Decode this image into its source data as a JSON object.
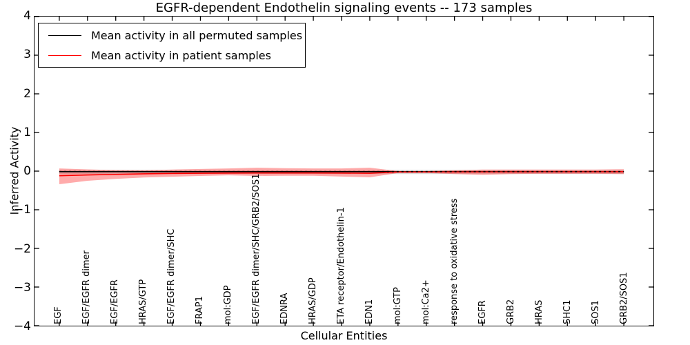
{
  "chart_data": {
    "type": "line",
    "title": "EGFR-dependent Endothelin signaling events -- 173 samples",
    "xlabel": "Cellular Entities",
    "ylabel": "Inferred Activity",
    "ylim": [
      -4,
      4
    ],
    "yticks": [
      4,
      3,
      2,
      1,
      0,
      -1,
      -2,
      -3,
      -4
    ],
    "grid": false,
    "legend_position": "upper left",
    "categories": [
      "EGF",
      "EGF/EGFR dimer",
      "EGF/EGFR",
      "HRAS/GTP",
      "EGF/EGFR dimer/SHC",
      "FRAP1",
      "mol:GDP",
      "EGF/EGFR dimer/SHC/GRB2/SOS1",
      "EDNRA",
      "HRAS/GDP",
      "ETA receptor/Endothelin-1",
      "EDN1",
      "mol:GTP",
      "mol:Ca2+",
      "response to oxidative stress",
      "EGFR",
      "GRB2",
      "HRAS",
      "SHC1",
      "SOS1",
      "GRB2/SOS1"
    ],
    "series": [
      {
        "name": "Mean activity in all permuted samples",
        "color": "#000000",
        "style": "solid",
        "values": [
          -0.015,
          -0.015,
          -0.015,
          -0.015,
          -0.015,
          -0.015,
          -0.015,
          -0.015,
          -0.015,
          -0.015,
          -0.015,
          -0.015,
          -0.015,
          -0.015,
          -0.015,
          -0.015,
          -0.015,
          -0.015,
          -0.015,
          -0.015,
          -0.015
        ]
      },
      {
        "name": "Mean activity in patient samples",
        "color": "#ff0000",
        "style": "solid",
        "values": [
          -0.12,
          -0.1,
          -0.085,
          -0.07,
          -0.06,
          -0.055,
          -0.05,
          -0.048,
          -0.048,
          -0.048,
          -0.05,
          -0.055,
          -0.022,
          -0.02,
          -0.02,
          -0.02,
          -0.02,
          -0.018,
          -0.018,
          -0.018,
          -0.015
        ]
      },
      {
        "name": "Permuted mean dashed overlay",
        "color": "#000000",
        "style": "dashed",
        "values": [
          -0.012,
          -0.012,
          -0.012,
          -0.012,
          -0.012,
          -0.012,
          -0.012,
          -0.012,
          -0.012,
          -0.012,
          -0.012,
          -0.012,
          -0.012,
          -0.012,
          -0.012,
          -0.012,
          -0.012,
          -0.012,
          -0.012,
          -0.012,
          -0.012
        ]
      }
    ],
    "bands": [
      {
        "name": "Permuted samples std band",
        "color": "#000000",
        "opacity": 0.14,
        "upper": [
          0.035,
          0.035,
          0.035,
          0.035,
          0.035,
          0.035,
          0.035,
          0.035,
          0.035,
          0.035,
          0.035,
          0.035,
          0.035,
          0.035,
          0.035,
          0.035,
          0.035,
          0.035,
          0.035,
          0.035,
          0.035
        ],
        "lower": [
          -0.075,
          -0.075,
          -0.075,
          -0.075,
          -0.075,
          -0.075,
          -0.075,
          -0.075,
          -0.075,
          -0.075,
          -0.075,
          -0.075,
          -0.075,
          -0.075,
          -0.075,
          -0.075,
          -0.075,
          -0.075,
          -0.075,
          -0.075,
          -0.075
        ]
      },
      {
        "name": "Patient samples std band",
        "color": "#ff0000",
        "opacity": 0.33,
        "upper": [
          0.07,
          0.045,
          0.025,
          0.02,
          0.04,
          0.055,
          0.07,
          0.09,
          0.075,
          0.07,
          0.07,
          0.09,
          0.0,
          0.0,
          0.02,
          0.04,
          0.04,
          0.04,
          0.04,
          0.04,
          0.05
        ],
        "lower": [
          -0.34,
          -0.25,
          -0.2,
          -0.165,
          -0.145,
          -0.125,
          -0.11,
          -0.125,
          -0.12,
          -0.12,
          -0.14,
          -0.16,
          -0.05,
          -0.05,
          -0.075,
          -0.095,
          -0.075,
          -0.07,
          -0.07,
          -0.07,
          -0.075
        ]
      }
    ]
  },
  "legend": {
    "items": [
      {
        "label": "Mean activity in all permuted samples",
        "color": "#000000"
      },
      {
        "label": "Mean activity in patient samples",
        "color": "#ff0000"
      }
    ]
  }
}
